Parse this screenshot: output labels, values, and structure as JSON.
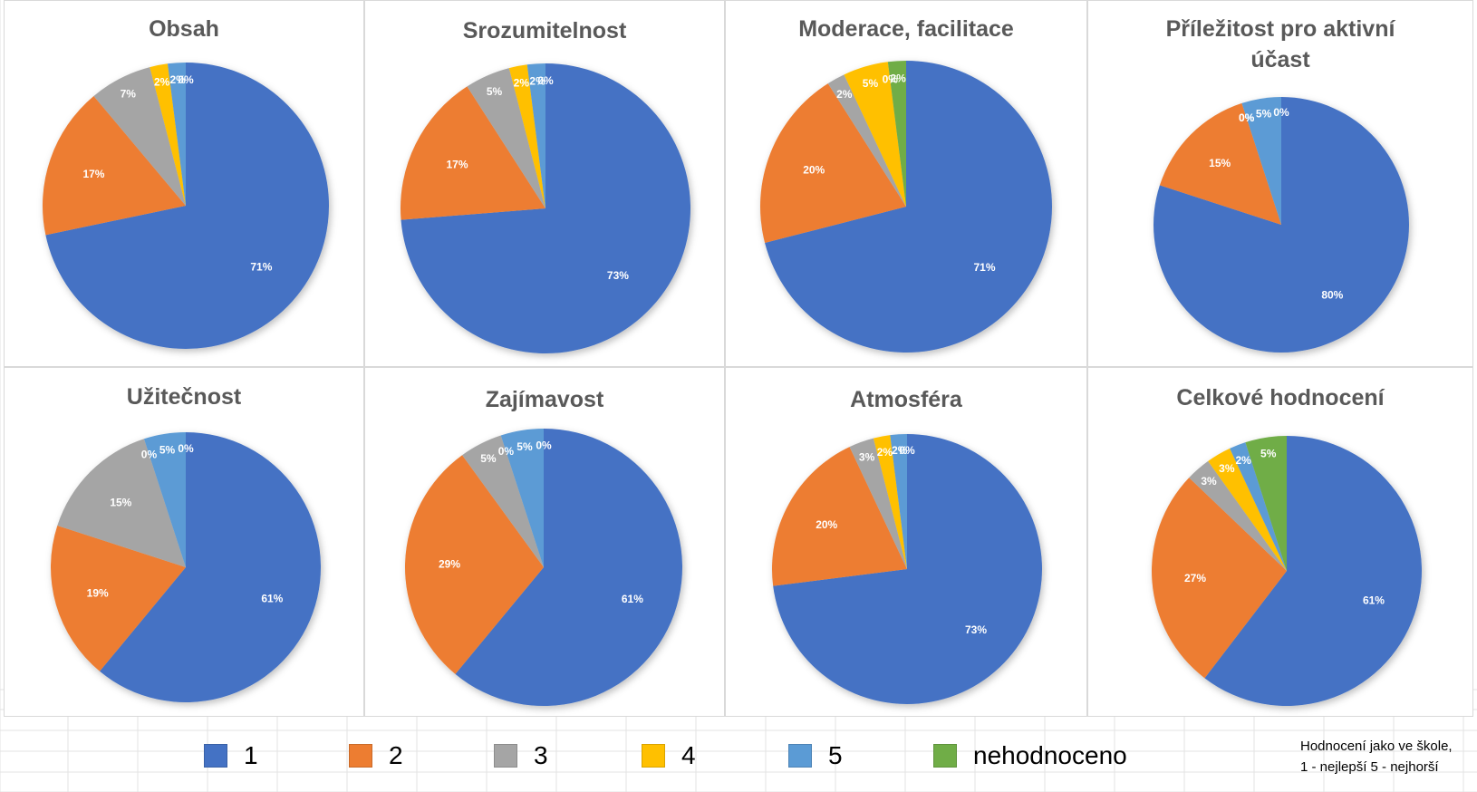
{
  "colors": {
    "1": "#4472c4",
    "2": "#ed7d31",
    "3": "#a5a5a5",
    "4": "#ffc000",
    "5": "#5b9bd5",
    "nehodnoceno": "#70ad47"
  },
  "legend": {
    "items": [
      {
        "key": "1",
        "label": "1"
      },
      {
        "key": "2",
        "label": "2"
      },
      {
        "key": "3",
        "label": "3"
      },
      {
        "key": "4",
        "label": "4"
      },
      {
        "key": "5",
        "label": "5"
      },
      {
        "key": "nehodnoceno",
        "label": "nehodnoceno"
      }
    ]
  },
  "note": {
    "line1": "Hodnocení jako ve škole,",
    "line2": "1 - nejlepší 5 - nejhorší"
  },
  "chart_data": [
    {
      "type": "pie",
      "title": "Obsah",
      "categories": [
        "1",
        "2",
        "3",
        "4",
        "5",
        "nehodnoceno"
      ],
      "values": [
        71,
        17,
        7,
        2,
        2,
        0
      ],
      "labels": [
        "71%",
        "17%",
        "7%",
        "2%",
        "2%",
        "0%"
      ]
    },
    {
      "type": "pie",
      "title": "Srozumitelnost",
      "categories": [
        "1",
        "2",
        "3",
        "4",
        "5",
        "nehodnoceno"
      ],
      "values": [
        73,
        17,
        5,
        2,
        2,
        0
      ],
      "labels": [
        "73%",
        "17%",
        "5%",
        "2%",
        "2%",
        "0%"
      ]
    },
    {
      "type": "pie",
      "title": "Moderace, facilitace",
      "categories": [
        "1",
        "2",
        "3",
        "4",
        "5",
        "nehodnoceno"
      ],
      "values": [
        71,
        20,
        2,
        5,
        0,
        2
      ],
      "labels": [
        "71%",
        "20%",
        "2%",
        "5%",
        "0%",
        "2%"
      ]
    },
    {
      "type": "pie",
      "title": "Příležitost pro aktivní účast",
      "categories": [
        "1",
        "2",
        "3",
        "4",
        "5",
        "nehodnoceno"
      ],
      "values": [
        80,
        15,
        0,
        0,
        5,
        0
      ],
      "labels": [
        "80%",
        "15%",
        "0%",
        "0%",
        "5%",
        "0%"
      ]
    },
    {
      "type": "pie",
      "title": "Užitečnost",
      "categories": [
        "1",
        "2",
        "3",
        "4",
        "5",
        "nehodnoceno"
      ],
      "values": [
        61,
        19,
        15,
        0,
        5,
        0
      ],
      "labels": [
        "61%",
        "19%",
        "15%",
        "0%",
        "5%",
        "0%"
      ]
    },
    {
      "type": "pie",
      "title": "Zajímavost",
      "categories": [
        "1",
        "2",
        "3",
        "4",
        "5",
        "nehodnoceno"
      ],
      "values": [
        61,
        29,
        5,
        0,
        5,
        0
      ],
      "labels": [
        "61%",
        "29%",
        "5%",
        "0%",
        "5%",
        "0%"
      ]
    },
    {
      "type": "pie",
      "title": "Atmosféra",
      "categories": [
        "1",
        "2",
        "3",
        "4",
        "5",
        "nehodnoceno"
      ],
      "values": [
        73,
        20,
        3,
        2,
        2,
        0
      ],
      "labels": [
        "73%",
        "20%",
        "3%",
        "2%",
        "2%",
        "0%"
      ]
    },
    {
      "type": "pie",
      "title": "Celkové hodnocení",
      "categories": [
        "1",
        "2",
        "3",
        "4",
        "5",
        "nehodnoceno"
      ],
      "values": [
        61,
        27,
        3,
        3,
        2,
        5
      ],
      "labels": [
        "61%",
        "27%",
        "3%",
        "3%",
        "2%",
        "5%"
      ]
    }
  ]
}
